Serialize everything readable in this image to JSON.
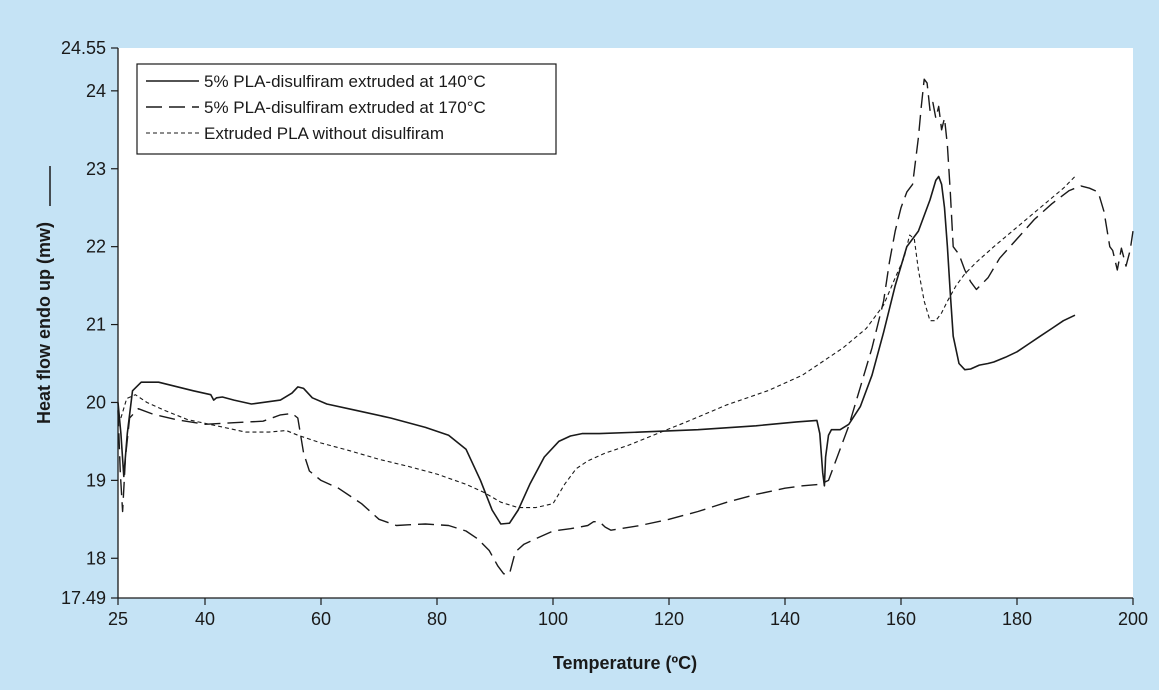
{
  "chart_data": {
    "type": "line",
    "xlabel": "Temperature (ºC)",
    "ylabel": "Heat flow endo up (mw)",
    "xlim": [
      25,
      200
    ],
    "ylim": [
      17.49,
      24.55
    ],
    "x_ticks": [
      25,
      40,
      60,
      80,
      100,
      120,
      140,
      160,
      180,
      200
    ],
    "y_ticks": [
      17.49,
      18,
      19,
      20,
      21,
      22,
      23,
      24,
      24.55
    ],
    "grid": false,
    "legend_position": "top-left",
    "series": [
      {
        "name": "5% PLA-disulfiram extruded at 140°C",
        "dash": "solid",
        "x": [
          25,
          25.5,
          26,
          26.6,
          27.5,
          29,
          32,
          38,
          41,
          41.5,
          42,
          43,
          45,
          48,
          53,
          55,
          56,
          57,
          58.5,
          61,
          66,
          72,
          78,
          82,
          85,
          87.5,
          89.5,
          91,
          92.5,
          94,
          96,
          98.5,
          101,
          103,
          105,
          108,
          115,
          125,
          135,
          142,
          145.5,
          146,
          146.5,
          146.8,
          147,
          147.5,
          148,
          149.5,
          151,
          153,
          155,
          157,
          159,
          161,
          163,
          164,
          165,
          166,
          166.5,
          167,
          167.5,
          168,
          168.5,
          169,
          170,
          171,
          172,
          173.5,
          175,
          176,
          177,
          178,
          180,
          182,
          184,
          186,
          188,
          190
        ],
        "y": [
          20.0,
          19.6,
          19.05,
          19.6,
          20.15,
          20.26,
          20.26,
          20.15,
          20.1,
          20.03,
          20.06,
          20.07,
          20.03,
          19.98,
          20.03,
          20.12,
          20.2,
          20.18,
          20.06,
          19.98,
          19.9,
          19.8,
          19.68,
          19.58,
          19.4,
          19.0,
          18.62,
          18.44,
          18.45,
          18.62,
          18.95,
          19.3,
          19.5,
          19.57,
          19.6,
          19.6,
          19.62,
          19.65,
          19.7,
          19.75,
          19.77,
          19.6,
          19.1,
          18.93,
          19.3,
          19.58,
          19.65,
          19.65,
          19.72,
          19.95,
          20.35,
          20.9,
          21.5,
          22.0,
          22.2,
          22.4,
          22.6,
          22.85,
          22.9,
          22.8,
          22.5,
          22.0,
          21.4,
          20.85,
          20.5,
          20.42,
          20.43,
          20.48,
          20.5,
          20.52,
          20.55,
          20.58,
          20.65,
          20.75,
          20.85,
          20.95,
          21.05,
          21.12
        ]
      },
      {
        "name": "5% PLA-disulfiram extruded at 170°C",
        "dash": "long-dash",
        "x": [
          25,
          25.4,
          25.8,
          26.3,
          27,
          28.5,
          31,
          35,
          40,
          45,
          50,
          53,
          55,
          56,
          57,
          58,
          60,
          63,
          67,
          70,
          73,
          75,
          78,
          82,
          85,
          87,
          89,
          90.5,
          91.5,
          92.5,
          93.5,
          95,
          97,
          100,
          103,
          106,
          107,
          108,
          109,
          110,
          115,
          120,
          125,
          130,
          135,
          140,
          143,
          146,
          147.5,
          149,
          151,
          153,
          155,
          157,
          158,
          159,
          160,
          161,
          162,
          162.5,
          163,
          163.5,
          164,
          164.5,
          165,
          165.5,
          166,
          166.5,
          167,
          167.5,
          168,
          168.5,
          169,
          170,
          171,
          172,
          173,
          175,
          177,
          180,
          183,
          186,
          189,
          191,
          192.5,
          194,
          195,
          196,
          196.5,
          197.3,
          198,
          198.8,
          199.5,
          200
        ],
        "y": [
          19.9,
          19.1,
          18.6,
          19.3,
          19.8,
          19.92,
          19.85,
          19.78,
          19.72,
          19.74,
          19.76,
          19.84,
          19.86,
          19.8,
          19.35,
          19.12,
          19.0,
          18.9,
          18.7,
          18.5,
          18.42,
          18.43,
          18.44,
          18.42,
          18.35,
          18.25,
          18.1,
          17.9,
          17.8,
          17.8,
          18.08,
          18.18,
          18.25,
          18.35,
          18.38,
          18.42,
          18.47,
          18.47,
          18.4,
          18.36,
          18.42,
          18.5,
          18.6,
          18.72,
          18.82,
          18.9,
          18.93,
          18.95,
          19.0,
          19.3,
          19.7,
          20.2,
          20.7,
          21.3,
          21.8,
          22.2,
          22.5,
          22.7,
          22.8,
          23.1,
          23.4,
          23.8,
          24.15,
          24.1,
          23.75,
          23.85,
          23.65,
          23.8,
          23.5,
          23.65,
          23.3,
          22.7,
          22.0,
          21.9,
          21.7,
          21.55,
          21.45,
          21.6,
          21.85,
          22.1,
          22.35,
          22.55,
          22.72,
          22.78,
          22.75,
          22.7,
          22.45,
          22.0,
          21.95,
          21.7,
          21.98,
          21.75,
          21.95,
          22.2
        ]
      },
      {
        "name": "Extruded PLA without disulfiram",
        "dash": "short-dash",
        "x": [
          25.5,
          26.5,
          28,
          30,
          33,
          37,
          42,
          47,
          51,
          54,
          56,
          60,
          65,
          70,
          75,
          80,
          85,
          88,
          91,
          94,
          97,
          100,
          102,
          104,
          106,
          109,
          113,
          118,
          123,
          130,
          137,
          143,
          146,
          150,
          154,
          157,
          159,
          160.5,
          161.5,
          162.3,
          163,
          164,
          165,
          166,
          167,
          168,
          169.5,
          171,
          173,
          176,
          180,
          184,
          188,
          190
        ],
        "y": [
          19.8,
          20.05,
          20.1,
          20.0,
          19.9,
          19.78,
          19.7,
          19.62,
          19.62,
          19.64,
          19.58,
          19.48,
          19.38,
          19.27,
          19.18,
          19.08,
          18.95,
          18.85,
          18.72,
          18.65,
          18.65,
          18.7,
          18.95,
          19.15,
          19.25,
          19.35,
          19.45,
          19.6,
          19.75,
          19.97,
          20.15,
          20.35,
          20.5,
          20.7,
          20.95,
          21.25,
          21.6,
          21.85,
          22.15,
          22.1,
          21.7,
          21.3,
          21.05,
          21.05,
          21.15,
          21.3,
          21.5,
          21.65,
          21.8,
          22.0,
          22.25,
          22.5,
          22.75,
          22.9
        ]
      }
    ]
  }
}
